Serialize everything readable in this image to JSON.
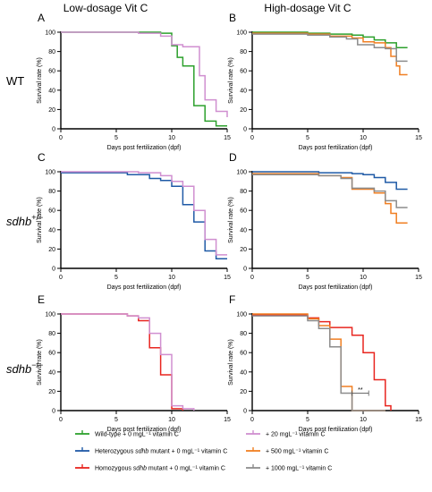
{
  "headers": {
    "left": "Low-dosage Vit C",
    "right": "High-dosage Vit C"
  },
  "rows": [
    {
      "label": "WT",
      "gene": "",
      "sup": ""
    },
    {
      "label": "",
      "gene": "sdhb",
      "sup": "+/−"
    },
    {
      "label": "",
      "gene": "sdhb",
      "sup": "−/−"
    }
  ],
  "colors": {
    "wildtype": "#2ca02c",
    "het": "#1f5aa6",
    "hom": "#e8251f",
    "vc20": "#d08fd0",
    "vc500": "#f07f22",
    "vc1000": "#8c8c8c"
  },
  "legend": [
    {
      "key": "wildtype",
      "prefix": "Wild-type",
      "italic": "",
      "suffix": " + 0 mgL⁻¹ vitamin C"
    },
    {
      "key": "vc20",
      "prefix": "+ 20 mgL⁻¹ vitamin C",
      "italic": "",
      "suffix": ""
    },
    {
      "key": "het",
      "prefix": "Heterozygous ",
      "italic": "sdhb",
      "suffix": " mutant + 0 mgL⁻¹ vitamin C"
    },
    {
      "key": "vc500",
      "prefix": "+ 500 mgL⁻¹ vitamin C",
      "italic": "",
      "suffix": ""
    },
    {
      "key": "hom",
      "prefix": "Homozygous ",
      "italic": "sdhb",
      "suffix": " mutant + 0 mgL⁻¹ vitamin C"
    },
    {
      "key": "vc1000",
      "prefix": "+ 1000 mgL⁻¹ vitamin C",
      "italic": "",
      "suffix": ""
    }
  ],
  "chart_data": [
    {
      "type": "line",
      "panel": "A",
      "xlabel": "Days post fertilization (dpf)",
      "ylabel": "Survival rate (%)",
      "xlim": [
        0,
        15
      ],
      "ylim": [
        0,
        100
      ],
      "xticks": [
        0,
        5,
        10,
        15
      ],
      "yticks": [
        0,
        20,
        40,
        60,
        80,
        100
      ],
      "max_x": 15,
      "series": [
        {
          "key": "wildtype",
          "steps": [
            [
              0,
              100
            ],
            [
              9,
              99
            ],
            [
              10,
              86
            ],
            [
              10.5,
              74
            ],
            [
              11,
              65
            ],
            [
              12,
              24
            ],
            [
              13,
              8
            ],
            [
              14,
              3
            ]
          ]
        },
        {
          "key": "vc20",
          "steps": [
            [
              0,
              100
            ],
            [
              7,
              99
            ],
            [
              9,
              96
            ],
            [
              10,
              87
            ],
            [
              11,
              85
            ],
            [
              12.5,
              55
            ],
            [
              13,
              30
            ],
            [
              14,
              18
            ],
            [
              15,
              12
            ]
          ]
        }
      ]
    },
    {
      "type": "line",
      "panel": "B",
      "xlabel": "Days post fertilization (dpf)",
      "ylabel": "Survival rate (%)",
      "xlim": [
        0,
        15
      ],
      "ylim": [
        0,
        100
      ],
      "xticks": [
        0,
        5,
        10,
        15
      ],
      "yticks": [
        0,
        20,
        40,
        60,
        80,
        100
      ],
      "max_x": 14,
      "series": [
        {
          "key": "wildtype",
          "steps": [
            [
              0,
              100
            ],
            [
              5,
              99
            ],
            [
              7,
              98
            ],
            [
              9,
              97
            ],
            [
              10,
              95
            ],
            [
              11,
              92
            ],
            [
              12,
              89
            ],
            [
              13,
              84
            ]
          ]
        },
        {
          "key": "vc500",
          "steps": [
            [
              0,
              99
            ],
            [
              5,
              98
            ],
            [
              7,
              96
            ],
            [
              9,
              94
            ],
            [
              10,
              90
            ],
            [
              11,
              89
            ],
            [
              12,
              84
            ],
            [
              12.5,
              75
            ],
            [
              13,
              65
            ],
            [
              13.3,
              56
            ]
          ]
        },
        {
          "key": "vc1000",
          "steps": [
            [
              0,
              98
            ],
            [
              5,
              97
            ],
            [
              7,
              95
            ],
            [
              8.5,
              93
            ],
            [
              9.5,
              87
            ],
            [
              11,
              84
            ],
            [
              12,
              83
            ],
            [
              13,
              70
            ]
          ]
        }
      ]
    },
    {
      "type": "line",
      "panel": "C",
      "xlabel": "Days post fertilization (dpf)",
      "ylabel": "Survival rate (%)",
      "xlim": [
        0,
        15
      ],
      "ylim": [
        0,
        100
      ],
      "xticks": [
        0,
        5,
        10,
        15
      ],
      "yticks": [
        0,
        20,
        40,
        60,
        80,
        100
      ],
      "max_x": 15,
      "series": [
        {
          "key": "het",
          "steps": [
            [
              0,
              99
            ],
            [
              6,
              97
            ],
            [
              8,
              93
            ],
            [
              9,
              91
            ],
            [
              10,
              85
            ],
            [
              11,
              66
            ],
            [
              12,
              48
            ],
            [
              13,
              18
            ],
            [
              14,
              10
            ]
          ]
        },
        {
          "key": "vc20",
          "steps": [
            [
              0,
              100
            ],
            [
              7,
              99
            ],
            [
              9,
              96
            ],
            [
              10,
              90
            ],
            [
              11,
              85
            ],
            [
              12,
              60
            ],
            [
              13,
              30
            ],
            [
              14,
              14
            ]
          ]
        }
      ]
    },
    {
      "type": "line",
      "panel": "D",
      "xlabel": "Days post fertilization (dpf)",
      "ylabel": "Survival rate (%)",
      "xlim": [
        0,
        15
      ],
      "ylim": [
        0,
        100
      ],
      "xticks": [
        0,
        5,
        10,
        15
      ],
      "yticks": [
        0,
        20,
        40,
        60,
        80,
        100
      ],
      "max_x": 14,
      "series": [
        {
          "key": "het",
          "steps": [
            [
              0,
              100
            ],
            [
              6,
              99
            ],
            [
              9,
              98
            ],
            [
              10,
              97
            ],
            [
              11,
              94
            ],
            [
              12,
              89
            ],
            [
              13,
              82
            ]
          ]
        },
        {
          "key": "vc500",
          "steps": [
            [
              0,
              98
            ],
            [
              6,
              96
            ],
            [
              8,
              94
            ],
            [
              9,
              82
            ],
            [
              11,
              78
            ],
            [
              12,
              67
            ],
            [
              12.5,
              57
            ],
            [
              13,
              47
            ]
          ]
        },
        {
          "key": "vc1000",
          "steps": [
            [
              0,
              97
            ],
            [
              6,
              96
            ],
            [
              8,
              93
            ],
            [
              9,
              83
            ],
            [
              11,
              80
            ],
            [
              12,
              70
            ],
            [
              13,
              63
            ]
          ]
        }
      ]
    },
    {
      "type": "line",
      "panel": "E",
      "xlabel": "Days post fertilization (dpf)",
      "ylabel": "Survival rate (%)",
      "xlim": [
        0,
        15
      ],
      "ylim": [
        0,
        100
      ],
      "xticks": [
        0,
        5,
        10,
        15
      ],
      "yticks": [
        0,
        20,
        40,
        60,
        80,
        100
      ],
      "max_x": 11,
      "series": [
        {
          "key": "hom",
          "steps": [
            [
              0,
              100
            ],
            [
              6,
              98
            ],
            [
              7,
              93
            ],
            [
              8,
              65
            ],
            [
              9,
              37
            ],
            [
              10,
              2
            ],
            [
              11,
              0
            ]
          ]
        },
        {
          "key": "vc20",
          "steps": [
            [
              0,
              100
            ],
            [
              6,
              98
            ],
            [
              7,
              96
            ],
            [
              8,
              80
            ],
            [
              9,
              58
            ],
            [
              10,
              5
            ],
            [
              11,
              2
            ],
            [
              12,
              0
            ]
          ]
        }
      ]
    },
    {
      "type": "line",
      "panel": "F",
      "xlabel": "Days post fertilization (dpf)",
      "ylabel": "Survival rate (%)",
      "xlim": [
        0,
        15
      ],
      "ylim": [
        0,
        100
      ],
      "xticks": [
        0,
        5,
        10,
        15
      ],
      "yticks": [
        0,
        20,
        40,
        60,
        80,
        100
      ],
      "max_x": 12,
      "series": [
        {
          "key": "hom",
          "steps": [
            [
              0,
              99
            ],
            [
              5,
              96
            ],
            [
              6,
              92
            ],
            [
              7,
              86
            ],
            [
              9,
              78
            ],
            [
              10,
              60
            ],
            [
              11,
              32
            ],
            [
              12,
              5
            ],
            [
              12.5,
              0
            ]
          ]
        },
        {
          "key": "vc500",
          "steps": [
            [
              0,
              100
            ],
            [
              5,
              95
            ],
            [
              6,
              88
            ],
            [
              7,
              74
            ],
            [
              8,
              25
            ],
            [
              9,
              0
            ]
          ]
        },
        {
          "key": "vc1000",
          "steps": [
            [
              0,
              98
            ],
            [
              5,
              93
            ],
            [
              6,
              85
            ],
            [
              7,
              66
            ],
            [
              8,
              18
            ],
            [
              9,
              0
            ]
          ]
        }
      ],
      "annotation": {
        "text": "**",
        "x1": 9,
        "x2": 10.5,
        "y": 18
      }
    }
  ]
}
